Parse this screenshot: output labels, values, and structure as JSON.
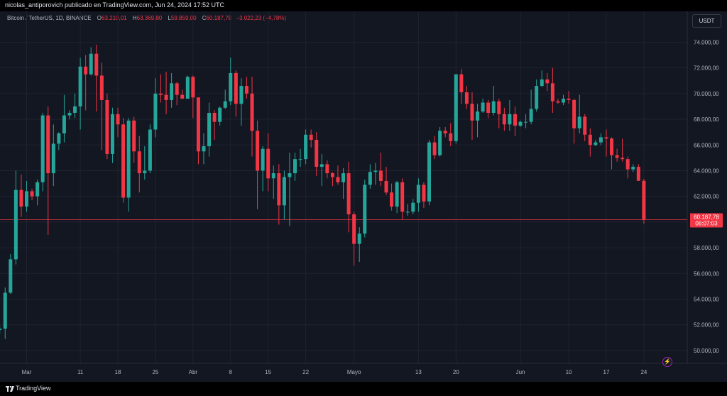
{
  "header": {
    "publish_text": "nicolas_antiporovich publicado en TradingView.com, Jun 24, 2024 17:52 UTC"
  },
  "legend": {
    "symbol": "Bitcoin / TetherUS, 1D, BINANCE",
    "open_label": "O",
    "open_value": "63.210,01",
    "high_label": "H",
    "high_value": "63.369,80",
    "low_label": "L",
    "low_value": "59.859,00",
    "close_label": "C",
    "close_value": "60.187,78",
    "change_text": "−3.022,23 (−4,78%)"
  },
  "currency_button": "USDT",
  "price_badge": {
    "price": "60.187,78",
    "countdown": "06:07:03"
  },
  "footer": {
    "brand": "TradingView"
  },
  "colors": {
    "up": "#26a69a",
    "down": "#f23645",
    "background": "#131722",
    "grid": "#1f2330",
    "axis_text": "#b2b5be"
  },
  "icons": {
    "alert": "lightning-icon",
    "logo": "tradingview-logo-icon"
  },
  "chart_data": {
    "type": "candlestick",
    "title": "Bitcoin / TetherUS, 1D, BINANCE",
    "currency": "USDT",
    "y_ticks": [
      50000,
      52000,
      54000,
      56000,
      58000,
      60000,
      62000,
      64000,
      66000,
      68000,
      70000,
      72000,
      74000
    ],
    "y_tick_labels": [
      "50.000,00",
      "52.000,00",
      "54.000,00",
      "56.000,00",
      "58.000,00",
      "60.000,00",
      "62.000,00",
      "64.000,00",
      "66.000,00",
      "68.000,00",
      "70.000,00",
      "72.000,00",
      "74.000,00"
    ],
    "ylim": [
      49000,
      76400
    ],
    "x_labels": [
      {
        "label": "Mar",
        "date": "2024-03-01"
      },
      {
        "label": "11",
        "date": "2024-03-11"
      },
      {
        "label": "18",
        "date": "2024-03-18"
      },
      {
        "label": "25",
        "date": "2024-03-25"
      },
      {
        "label": "Abr",
        "date": "2024-04-01"
      },
      {
        "label": "8",
        "date": "2024-04-08"
      },
      {
        "label": "15",
        "date": "2024-04-15"
      },
      {
        "label": "22",
        "date": "2024-04-22"
      },
      {
        "label": "Mayo",
        "date": "2024-05-01"
      },
      {
        "label": "13",
        "date": "2024-05-13"
      },
      {
        "label": "20",
        "date": "2024-05-20"
      },
      {
        "label": "Jun",
        "date": "2024-06-01"
      },
      {
        "label": "10",
        "date": "2024-06-10"
      },
      {
        "label": "17",
        "date": "2024-06-17"
      },
      {
        "label": "24",
        "date": "2024-06-24"
      }
    ],
    "last_price": 60187.78,
    "grid": true,
    "candles": [
      {
        "date": "2024-02-24",
        "o": 50700,
        "h": 51500,
        "l": 50500,
        "c": 51600
      },
      {
        "date": "2024-02-25",
        "o": 51600,
        "h": 51900,
        "l": 51300,
        "c": 51700
      },
      {
        "date": "2024-02-26",
        "o": 51700,
        "h": 54900,
        "l": 50900,
        "c": 54500
      },
      {
        "date": "2024-02-27",
        "o": 54500,
        "h": 57500,
        "l": 54400,
        "c": 57100
      },
      {
        "date": "2024-02-28",
        "o": 57100,
        "h": 64000,
        "l": 56700,
        "c": 62500
      },
      {
        "date": "2024-02-29",
        "o": 62500,
        "h": 63700,
        "l": 60400,
        "c": 61200
      },
      {
        "date": "2024-03-01",
        "o": 61200,
        "h": 63200,
        "l": 60800,
        "c": 62400
      },
      {
        "date": "2024-03-02",
        "o": 62400,
        "h": 62600,
        "l": 61700,
        "c": 62000
      },
      {
        "date": "2024-03-03",
        "o": 62000,
        "h": 63300,
        "l": 61300,
        "c": 63100
      },
      {
        "date": "2024-03-04",
        "o": 63100,
        "h": 68500,
        "l": 62400,
        "c": 68300
      },
      {
        "date": "2024-03-05",
        "o": 68300,
        "h": 69000,
        "l": 59000,
        "c": 63800
      },
      {
        "date": "2024-03-06",
        "o": 63800,
        "h": 67600,
        "l": 62800,
        "c": 66100
      },
      {
        "date": "2024-03-07",
        "o": 66100,
        "h": 67000,
        "l": 65600,
        "c": 66900
      },
      {
        "date": "2024-03-08",
        "o": 66900,
        "h": 69900,
        "l": 66200,
        "c": 68300
      },
      {
        "date": "2024-03-09",
        "o": 68300,
        "h": 68700,
        "l": 68000,
        "c": 68500
      },
      {
        "date": "2024-03-10",
        "o": 68500,
        "h": 70000,
        "l": 68100,
        "c": 69000
      },
      {
        "date": "2024-03-11",
        "o": 69000,
        "h": 72800,
        "l": 67200,
        "c": 72100
      },
      {
        "date": "2024-03-12",
        "o": 72100,
        "h": 73000,
        "l": 68700,
        "c": 71500
      },
      {
        "date": "2024-03-13",
        "o": 71500,
        "h": 73600,
        "l": 71400,
        "c": 73100
      },
      {
        "date": "2024-03-14",
        "o": 73100,
        "h": 73800,
        "l": 68600,
        "c": 71400
      },
      {
        "date": "2024-03-15",
        "o": 71400,
        "h": 72400,
        "l": 65600,
        "c": 69500
      },
      {
        "date": "2024-03-16",
        "o": 69500,
        "h": 70000,
        "l": 64900,
        "c": 65300
      },
      {
        "date": "2024-03-17",
        "o": 65300,
        "h": 68900,
        "l": 64600,
        "c": 68400
      },
      {
        "date": "2024-03-18",
        "o": 68400,
        "h": 68900,
        "l": 66600,
        "c": 67600
      },
      {
        "date": "2024-03-19",
        "o": 67600,
        "h": 68100,
        "l": 61500,
        "c": 61900
      },
      {
        "date": "2024-03-20",
        "o": 61900,
        "h": 68100,
        "l": 60800,
        "c": 67900
      },
      {
        "date": "2024-03-21",
        "o": 67900,
        "h": 68200,
        "l": 64600,
        "c": 65500
      },
      {
        "date": "2024-03-22",
        "o": 65500,
        "h": 66700,
        "l": 62300,
        "c": 63800
      },
      {
        "date": "2024-03-23",
        "o": 63800,
        "h": 65900,
        "l": 63300,
        "c": 64000
      },
      {
        "date": "2024-03-24",
        "o": 64000,
        "h": 67600,
        "l": 63800,
        "c": 67200
      },
      {
        "date": "2024-03-25",
        "o": 67200,
        "h": 71200,
        "l": 66600,
        "c": 70000
      },
      {
        "date": "2024-03-26",
        "o": 70000,
        "h": 71500,
        "l": 69300,
        "c": 69900
      },
      {
        "date": "2024-03-27",
        "o": 69900,
        "h": 71700,
        "l": 68400,
        "c": 69500
      },
      {
        "date": "2024-03-28",
        "o": 69500,
        "h": 71600,
        "l": 68900,
        "c": 70800
      },
      {
        "date": "2024-03-29",
        "o": 70800,
        "h": 70900,
        "l": 69100,
        "c": 69900
      },
      {
        "date": "2024-03-30",
        "o": 69900,
        "h": 70300,
        "l": 69600,
        "c": 69600
      },
      {
        "date": "2024-03-31",
        "o": 69600,
        "h": 71400,
        "l": 69600,
        "c": 71300
      },
      {
        "date": "2024-04-01",
        "o": 71300,
        "h": 71400,
        "l": 68100,
        "c": 69700
      },
      {
        "date": "2024-04-02",
        "o": 69700,
        "h": 69700,
        "l": 64500,
        "c": 65500
      },
      {
        "date": "2024-04-03",
        "o": 65500,
        "h": 66900,
        "l": 64500,
        "c": 65900
      },
      {
        "date": "2024-04-04",
        "o": 65900,
        "h": 69300,
        "l": 65100,
        "c": 68500
      },
      {
        "date": "2024-04-05",
        "o": 68500,
        "h": 68700,
        "l": 66400,
        "c": 67800
      },
      {
        "date": "2024-04-06",
        "o": 67800,
        "h": 69000,
        "l": 67500,
        "c": 68900
      },
      {
        "date": "2024-04-07",
        "o": 68900,
        "h": 70300,
        "l": 68800,
        "c": 69400
      },
      {
        "date": "2024-04-08",
        "o": 69400,
        "h": 72800,
        "l": 69100,
        "c": 71600
      },
      {
        "date": "2024-04-09",
        "o": 71600,
        "h": 71800,
        "l": 68200,
        "c": 69200
      },
      {
        "date": "2024-04-10",
        "o": 69200,
        "h": 71200,
        "l": 67500,
        "c": 70600
      },
      {
        "date": "2024-04-11",
        "o": 70600,
        "h": 71300,
        "l": 69600,
        "c": 70000
      },
      {
        "date": "2024-04-12",
        "o": 70000,
        "h": 71300,
        "l": 65100,
        "c": 67100
      },
      {
        "date": "2024-04-13",
        "o": 67100,
        "h": 67900,
        "l": 61000,
        "c": 64000
      },
      {
        "date": "2024-04-14",
        "o": 64000,
        "h": 65900,
        "l": 62400,
        "c": 65700
      },
      {
        "date": "2024-04-15",
        "o": 65700,
        "h": 66900,
        "l": 62400,
        "c": 63400
      },
      {
        "date": "2024-04-16",
        "o": 63400,
        "h": 64400,
        "l": 61800,
        "c": 63800
      },
      {
        "date": "2024-04-17",
        "o": 63800,
        "h": 64500,
        "l": 59800,
        "c": 61300
      },
      {
        "date": "2024-04-18",
        "o": 61300,
        "h": 64000,
        "l": 60200,
        "c": 63500
      },
      {
        "date": "2024-04-19",
        "o": 63500,
        "h": 65400,
        "l": 59700,
        "c": 63800
      },
      {
        "date": "2024-04-20",
        "o": 63800,
        "h": 65400,
        "l": 63200,
        "c": 64900
      },
      {
        "date": "2024-04-21",
        "o": 64900,
        "h": 65700,
        "l": 64300,
        "c": 64900
      },
      {
        "date": "2024-04-22",
        "o": 64900,
        "h": 67200,
        "l": 64500,
        "c": 66800
      },
      {
        "date": "2024-04-23",
        "o": 66800,
        "h": 67200,
        "l": 65800,
        "c": 66400
      },
      {
        "date": "2024-04-24",
        "o": 66400,
        "h": 67000,
        "l": 63600,
        "c": 64300
      },
      {
        "date": "2024-04-25",
        "o": 64300,
        "h": 65300,
        "l": 62800,
        "c": 64500
      },
      {
        "date": "2024-04-26",
        "o": 64500,
        "h": 64800,
        "l": 63400,
        "c": 63800
      },
      {
        "date": "2024-04-27",
        "o": 63800,
        "h": 63900,
        "l": 62800,
        "c": 63500
      },
      {
        "date": "2024-04-28",
        "o": 63500,
        "h": 64400,
        "l": 62900,
        "c": 63100
      },
      {
        "date": "2024-04-29",
        "o": 63100,
        "h": 64200,
        "l": 61800,
        "c": 63800
      },
      {
        "date": "2024-04-30",
        "o": 63800,
        "h": 64700,
        "l": 59200,
        "c": 60600
      },
      {
        "date": "2024-05-01",
        "o": 60600,
        "h": 60800,
        "l": 56600,
        "c": 58300
      },
      {
        "date": "2024-05-02",
        "o": 58300,
        "h": 59600,
        "l": 56900,
        "c": 59100
      },
      {
        "date": "2024-05-03",
        "o": 59100,
        "h": 63300,
        "l": 58800,
        "c": 62900
      },
      {
        "date": "2024-05-04",
        "o": 62900,
        "h": 64500,
        "l": 62600,
        "c": 63900
      },
      {
        "date": "2024-05-05",
        "o": 63900,
        "h": 64600,
        "l": 62900,
        "c": 64000
      },
      {
        "date": "2024-05-06",
        "o": 64000,
        "h": 65400,
        "l": 62800,
        "c": 63200
      },
      {
        "date": "2024-05-07",
        "o": 63200,
        "h": 64300,
        "l": 62100,
        "c": 62300
      },
      {
        "date": "2024-05-08",
        "o": 62300,
        "h": 63000,
        "l": 60900,
        "c": 61200
      },
      {
        "date": "2024-05-09",
        "o": 61200,
        "h": 63200,
        "l": 60700,
        "c": 63100
      },
      {
        "date": "2024-05-10",
        "o": 63100,
        "h": 63400,
        "l": 60200,
        "c": 60800
      },
      {
        "date": "2024-05-11",
        "o": 60800,
        "h": 61400,
        "l": 60500,
        "c": 60800
      },
      {
        "date": "2024-05-12",
        "o": 60800,
        "h": 61800,
        "l": 60600,
        "c": 61500
      },
      {
        "date": "2024-05-13",
        "o": 61500,
        "h": 63400,
        "l": 60800,
        "c": 62900
      },
      {
        "date": "2024-05-14",
        "o": 62900,
        "h": 63100,
        "l": 61100,
        "c": 61600
      },
      {
        "date": "2024-05-15",
        "o": 61600,
        "h": 66400,
        "l": 61300,
        "c": 66200
      },
      {
        "date": "2024-05-16",
        "o": 66200,
        "h": 66700,
        "l": 64900,
        "c": 65200
      },
      {
        "date": "2024-05-17",
        "o": 65200,
        "h": 67400,
        "l": 65100,
        "c": 67100
      },
      {
        "date": "2024-05-18",
        "o": 67100,
        "h": 67400,
        "l": 66600,
        "c": 66900
      },
      {
        "date": "2024-05-19",
        "o": 66900,
        "h": 67700,
        "l": 65900,
        "c": 66300
      },
      {
        "date": "2024-05-20",
        "o": 66300,
        "h": 71500,
        "l": 66100,
        "c": 71500
      },
      {
        "date": "2024-05-21",
        "o": 71500,
        "h": 71900,
        "l": 69200,
        "c": 70100
      },
      {
        "date": "2024-05-22",
        "o": 70100,
        "h": 70600,
        "l": 68800,
        "c": 69200
      },
      {
        "date": "2024-05-23",
        "o": 69200,
        "h": 70100,
        "l": 66400,
        "c": 67900
      },
      {
        "date": "2024-05-24",
        "o": 67900,
        "h": 69200,
        "l": 66600,
        "c": 68600
      },
      {
        "date": "2024-05-25",
        "o": 68600,
        "h": 69600,
        "l": 68500,
        "c": 69300
      },
      {
        "date": "2024-05-26",
        "o": 69300,
        "h": 69500,
        "l": 68100,
        "c": 68500
      },
      {
        "date": "2024-05-27",
        "o": 68500,
        "h": 70600,
        "l": 68300,
        "c": 69400
      },
      {
        "date": "2024-05-28",
        "o": 69400,
        "h": 69600,
        "l": 67300,
        "c": 68400
      },
      {
        "date": "2024-05-29",
        "o": 68400,
        "h": 68900,
        "l": 67100,
        "c": 67600
      },
      {
        "date": "2024-05-30",
        "o": 67600,
        "h": 69500,
        "l": 67100,
        "c": 68400
      },
      {
        "date": "2024-05-31",
        "o": 68400,
        "h": 69000,
        "l": 66700,
        "c": 67500
      },
      {
        "date": "2024-06-01",
        "o": 67500,
        "h": 67900,
        "l": 67400,
        "c": 67800
      },
      {
        "date": "2024-06-02",
        "o": 67800,
        "h": 68400,
        "l": 67300,
        "c": 67800
      },
      {
        "date": "2024-06-03",
        "o": 67800,
        "h": 70300,
        "l": 67600,
        "c": 68800
      },
      {
        "date": "2024-06-04",
        "o": 68800,
        "h": 71100,
        "l": 68600,
        "c": 70600
      },
      {
        "date": "2024-06-05",
        "o": 70600,
        "h": 71800,
        "l": 70500,
        "c": 71100
      },
      {
        "date": "2024-06-06",
        "o": 71100,
        "h": 71600,
        "l": 70200,
        "c": 70800
      },
      {
        "date": "2024-06-07",
        "o": 70800,
        "h": 72000,
        "l": 68500,
        "c": 69400
      },
      {
        "date": "2024-06-08",
        "o": 69400,
        "h": 69600,
        "l": 69200,
        "c": 69300
      },
      {
        "date": "2024-06-09",
        "o": 69300,
        "h": 69900,
        "l": 69100,
        "c": 69600
      },
      {
        "date": "2024-06-10",
        "o": 69600,
        "h": 70200,
        "l": 69200,
        "c": 69500
      },
      {
        "date": "2024-06-11",
        "o": 69500,
        "h": 69600,
        "l": 66100,
        "c": 67300
      },
      {
        "date": "2024-06-12",
        "o": 67300,
        "h": 69900,
        "l": 66900,
        "c": 68200
      },
      {
        "date": "2024-06-13",
        "o": 68200,
        "h": 68400,
        "l": 66300,
        "c": 66800
      },
      {
        "date": "2024-06-14",
        "o": 66800,
        "h": 67300,
        "l": 65100,
        "c": 66000
      },
      {
        "date": "2024-06-15",
        "o": 66000,
        "h": 66400,
        "l": 65900,
        "c": 66200
      },
      {
        "date": "2024-06-16",
        "o": 66200,
        "h": 66900,
        "l": 66000,
        "c": 66600
      },
      {
        "date": "2024-06-17",
        "o": 66600,
        "h": 67200,
        "l": 65100,
        "c": 66500
      },
      {
        "date": "2024-06-18",
        "o": 66500,
        "h": 66600,
        "l": 64100,
        "c": 65200
      },
      {
        "date": "2024-06-19",
        "o": 65200,
        "h": 65700,
        "l": 64700,
        "c": 65000
      },
      {
        "date": "2024-06-20",
        "o": 65000,
        "h": 66500,
        "l": 64700,
        "c": 64900
      },
      {
        "date": "2024-06-21",
        "o": 64900,
        "h": 65100,
        "l": 63400,
        "c": 64100
      },
      {
        "date": "2024-06-22",
        "o": 64100,
        "h": 64500,
        "l": 63900,
        "c": 64300
      },
      {
        "date": "2024-06-23",
        "o": 64300,
        "h": 64500,
        "l": 63200,
        "c": 63210
      },
      {
        "date": "2024-06-24",
        "o": 63210.01,
        "h": 63369.8,
        "l": 59859.0,
        "c": 60187.78
      }
    ]
  }
}
